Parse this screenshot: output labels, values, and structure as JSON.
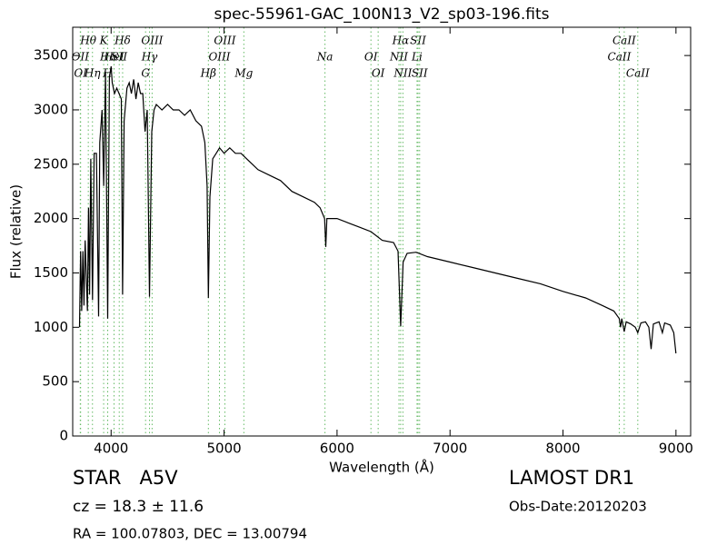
{
  "chart_data": {
    "type": "line",
    "title": "spec-55961-GAC_100N13_V2_sp03-196.fits",
    "x_label": "Wavelength (Å)",
    "y_label": "Flux (relative)",
    "color": "#000000",
    "marker_color": "#66bb66",
    "xlim": [
      3660,
      9130
    ],
    "ylim": [
      0,
      3760
    ],
    "xticks": [
      4000,
      5000,
      6000,
      7000,
      8000,
      9000
    ],
    "yticks": [
      0,
      500,
      1000,
      1500,
      2000,
      2500,
      3000,
      3500
    ],
    "x": [
      3720,
      3730,
      3740,
      3750,
      3760,
      3770,
      3790,
      3800,
      3810,
      3820,
      3835,
      3850,
      3870,
      3889,
      3900,
      3920,
      3934,
      3950,
      3970,
      3985,
      4000,
      4010,
      4030,
      4050,
      4070,
      4090,
      4102,
      4115,
      4140,
      4160,
      4180,
      4200,
      4220,
      4240,
      4260,
      4280,
      4300,
      4320,
      4340,
      4360,
      4380,
      4400,
      4450,
      4500,
      4550,
      4600,
      4650,
      4700,
      4750,
      4800,
      4830,
      4850,
      4861,
      4875,
      4900,
      4930,
      4960,
      5000,
      5050,
      5100,
      5150,
      5200,
      5250,
      5300,
      5400,
      5500,
      5600,
      5700,
      5800,
      5850,
      5890,
      5900,
      5910,
      6000,
      6100,
      6200,
      6300,
      6400,
      6500,
      6540,
      6563,
      6585,
      6620,
      6700,
      6800,
      7000,
      7200,
      7400,
      7600,
      7800,
      8000,
      8200,
      8350,
      8450,
      8498,
      8510,
      8520,
      8542,
      8560,
      8600,
      8640,
      8662,
      8690,
      8730,
      8760,
      8780,
      8800,
      8850,
      8880,
      8900,
      8950,
      8980,
      9000
    ],
    "values": [
      1000,
      1700,
      1150,
      1700,
      1200,
      1800,
      1150,
      2100,
      1300,
      2550,
      1250,
      2600,
      2600,
      1100,
      2700,
      3000,
      2300,
      3350,
      1080,
      3300,
      3400,
      3250,
      3150,
      3200,
      3150,
      3100,
      1300,
      2900,
      3200,
      3250,
      3150,
      3280,
      3100,
      3250,
      3150,
      3150,
      2800,
      3000,
      1280,
      2800,
      3000,
      3050,
      3000,
      3050,
      3000,
      3000,
      2950,
      3000,
      2900,
      2850,
      2700,
      2300,
      1270,
      2200,
      2550,
      2600,
      2650,
      2600,
      2650,
      2600,
      2600,
      2550,
      2500,
      2450,
      2400,
      2350,
      2250,
      2200,
      2150,
      2100,
      2000,
      1740,
      2000,
      2000,
      1960,
      1920,
      1880,
      1800,
      1780,
      1700,
      1010,
      1600,
      1680,
      1690,
      1650,
      1600,
      1550,
      1500,
      1450,
      1400,
      1330,
      1270,
      1200,
      1150,
      1080,
      1000,
      1080,
      960,
      1050,
      1030,
      1000,
      950,
      1040,
      1050,
      1000,
      800,
      1030,
      1050,
      950,
      1040,
      1020,
      950,
      760
    ],
    "line_markers": [
      {
        "label": "Hθ",
        "x": 3798
      },
      {
        "label": "K",
        "x": 3934
      },
      {
        "label": "Hδ",
        "x": 4102
      },
      {
        "label": "OIII",
        "x": 4363
      },
      {
        "label": "OIII",
        "x": 5007
      },
      {
        "label": "Hα",
        "x": 6563
      },
      {
        "label": "SII",
        "x": 6717
      },
      {
        "label": "CaII",
        "x": 8542
      },
      {
        "label": "OII",
        "x": 3727
      },
      {
        "label": "Hϵ",
        "x": 3970
      },
      {
        "label": "HeI",
        "x": 4026
      },
      {
        "label": "SII",
        "x": 4072
      },
      {
        "label": "Hγ",
        "x": 4340
      },
      {
        "label": "OIII",
        "x": 4959
      },
      {
        "label": "Na",
        "x": 5893
      },
      {
        "label": "OI",
        "x": 6300
      },
      {
        "label": "NII",
        "x": 6548
      },
      {
        "label": "Li",
        "x": 6708
      },
      {
        "label": "CaII",
        "x": 8498
      },
      {
        "label": "OI",
        "x": 3730
      },
      {
        "label": "Hη",
        "x": 3835
      },
      {
        "label": "H",
        "x": 3969
      },
      {
        "label": "G",
        "x": 4305
      },
      {
        "label": "Hβ",
        "x": 4861
      },
      {
        "label": "Mg",
        "x": 5175
      },
      {
        "label": "OI",
        "x": 6364
      },
      {
        "label": "NII",
        "x": 6583
      },
      {
        "label": "SII",
        "x": 6731
      },
      {
        "label": "CaII",
        "x": 8662
      }
    ],
    "annotations": {
      "object": "STAR   A5V",
      "survey": "LAMOST DR1",
      "redshift": "cz = 18.3 ± 11.6",
      "obs_date": "Obs-Date:20120203",
      "coords": "RA = 100.07803, DEC = 13.00794"
    }
  }
}
